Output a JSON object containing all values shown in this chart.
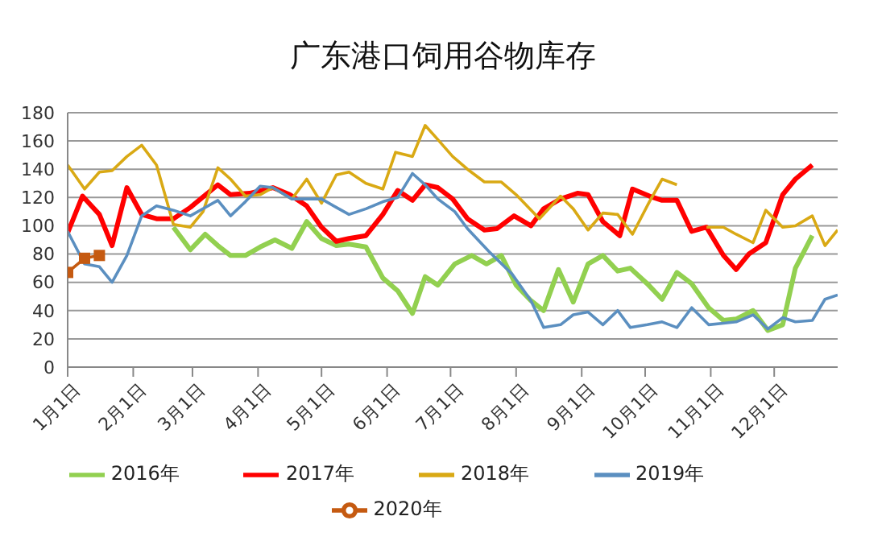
{
  "chart_data": {
    "type": "line",
    "title": "广东港口饲用谷物库存",
    "xlim": [
      "--01-01",
      "--12-31"
    ],
    "xticks": [
      {
        "value": "--01-01",
        "label": "1月1日"
      },
      {
        "value": "--02-01",
        "label": "2月1日"
      },
      {
        "value": "--03-01",
        "label": "3月1日"
      },
      {
        "value": "--04-01",
        "label": "4月1日"
      },
      {
        "value": "--05-01",
        "label": "5月1日"
      },
      {
        "value": "--06-01",
        "label": "6月1日"
      },
      {
        "value": "--07-01",
        "label": "7月1日"
      },
      {
        "value": "--08-01",
        "label": "8月1日"
      },
      {
        "value": "--09-01",
        "label": "9月1日"
      },
      {
        "value": "--10-01",
        "label": "10月1日"
      },
      {
        "value": "--11-01",
        "label": "11月1日"
      },
      {
        "value": "--12-01",
        "label": "12月1日"
      }
    ],
    "ylim": [
      0,
      180
    ],
    "yticks": [
      0,
      20,
      40,
      60,
      80,
      100,
      120,
      140,
      160,
      180
    ],
    "grid": "y",
    "legend": "bottom",
    "marker": "none",
    "line_style": "solid",
    "series": [
      {
        "name": "2016年",
        "color": "#92d050",
        "x": [
          "--02-20",
          "--02-28",
          "--03-07",
          "--03-13",
          "--03-19",
          "--03-26",
          "--04-02",
          "--04-09",
          "--04-17",
          "--04-24",
          "--05-01",
          "--05-08",
          "--05-14",
          "--05-22",
          "--05-30",
          "--06-06",
          "--06-13",
          "--06-19",
          "--06-25",
          "--07-03",
          "--07-11",
          "--07-18",
          "--07-25",
          "--08-01",
          "--08-08",
          "--08-14",
          "--08-21",
          "--08-28",
          "--09-04",
          "--09-11",
          "--09-18",
          "--09-24",
          "--10-02",
          "--10-09",
          "--10-16",
          "--10-23",
          "--10-31",
          "--11-07",
          "--11-13",
          "--11-21",
          "--11-28",
          "--12-05",
          "--12-11",
          "--12-19"
        ],
        "values": [
          99,
          83,
          94,
          86,
          79,
          79,
          85,
          90,
          84,
          103,
          91,
          86,
          87,
          85,
          63,
          54,
          38,
          64,
          58,
          73,
          79,
          73,
          79,
          58,
          47,
          40,
          69,
          46,
          73,
          79,
          68,
          70,
          59,
          48,
          67,
          59,
          42,
          33,
          34,
          40,
          26,
          30,
          70,
          93
        ]
      },
      {
        "name": "2017年",
        "color": "#ff0000",
        "x": [
          "--01-01",
          "--01-08",
          "--01-16",
          "--01-22",
          "--01-29",
          "--02-05",
          "--02-12",
          "--02-20",
          "--02-28",
          "--03-13",
          "--03-19",
          "--03-28",
          "--04-08",
          "--04-16",
          "--04-24",
          "--05-01",
          "--05-08",
          "--05-14",
          "--05-22",
          "--05-30",
          "--06-06",
          "--06-13",
          "--06-19",
          "--06-25",
          "--07-02",
          "--07-09",
          "--07-17",
          "--07-23",
          "--07-31",
          "--08-08",
          "--08-14",
          "--08-22",
          "--08-30",
          "--09-04",
          "--09-11",
          "--09-19",
          "--09-25",
          "--10-03",
          "--10-09",
          "--10-16",
          "--10-23",
          "--10-30",
          "--11-07",
          "--11-13",
          "--11-19",
          "--11-27",
          "--12-05",
          "--12-11",
          "--12-19"
        ],
        "values": [
          95,
          121,
          108,
          86,
          127,
          108,
          105,
          105,
          113,
          129,
          122,
          123,
          127,
          122,
          114,
          99,
          89,
          91,
          93,
          108,
          125,
          118,
          129,
          127,
          119,
          105,
          97,
          98,
          107,
          100,
          112,
          119,
          123,
          122,
          103,
          93,
          126,
          121,
          118,
          118,
          96,
          99,
          79,
          69,
          80,
          88,
          122,
          133,
          143
        ]
      },
      {
        "name": "2018年",
        "color": "#d9a914",
        "x": [
          "--01-01",
          "--01-09",
          "--01-16",
          "--01-22",
          "--01-29",
          "--02-05",
          "--02-12",
          "--02-20",
          "--02-28",
          "--03-06",
          "--03-13",
          "--03-19",
          "--03-26",
          "--04-02",
          "--04-08",
          "--04-17",
          "--04-24",
          "--05-01",
          "--05-08",
          "--05-14",
          "--05-22",
          "--05-30",
          "--06-05",
          "--06-13",
          "--06-19",
          "--06-25",
          "--07-02",
          "--07-09",
          "--07-17",
          "--07-25",
          "--08-01",
          "--08-12",
          "--08-22",
          "--08-28",
          "--09-04",
          "--09-11",
          "--09-18",
          "--09-25",
          "--10-03",
          "--10-09",
          "--10-16",
          "--10-23",
          "--10-30",
          "--11-07",
          "--11-13",
          "--11-21",
          "--11-27",
          "--12-05",
          "--12-11",
          "--12-19",
          "--12-25",
          "--12-31"
        ],
        "values": [
          143,
          126,
          138,
          139,
          149,
          157,
          143,
          101,
          99,
          110,
          141,
          133,
          121,
          122,
          127,
          119,
          133,
          116,
          136,
          138,
          130,
          126,
          152,
          149,
          171,
          161,
          149,
          140,
          131,
          131,
          122,
          105,
          121,
          112,
          97,
          109,
          108,
          94,
          117,
          133,
          129,
          null,
          99,
          99,
          94,
          88,
          111,
          99,
          100,
          107,
          86,
          97
        ]
      },
      {
        "name": "2019年",
        "color": "#5b8fc0",
        "x": [
          "--01-01",
          "--01-09",
          "--01-16",
          "--01-22",
          "--01-29",
          "--02-05",
          "--02-12",
          "--02-20",
          "--02-28",
          "--03-13",
          "--03-19",
          "--03-26",
          "--04-02",
          "--04-08",
          "--04-17",
          "--04-24",
          "--05-01",
          "--05-08",
          "--05-14",
          "--05-22",
          "--05-30",
          "--06-06",
          "--06-13",
          "--06-19",
          "--06-25",
          "--07-03",
          "--07-09",
          "--07-19",
          "--07-30",
          "--08-08",
          "--08-14",
          "--08-22",
          "--08-28",
          "--09-04",
          "--09-11",
          "--09-18",
          "--09-24",
          "--10-02",
          "--10-09",
          "--10-16",
          "--10-23",
          "--10-31",
          "--11-07",
          "--11-13",
          "--11-21",
          "--11-28",
          "--12-05",
          "--12-11",
          "--12-19",
          "--12-25",
          "--12-31"
        ],
        "values": [
          96,
          73,
          71,
          60,
          79,
          107,
          114,
          111,
          107,
          118,
          107,
          117,
          128,
          127,
          119,
          119,
          119,
          113,
          108,
          112,
          117,
          120,
          137,
          129,
          119,
          110,
          98,
          82,
          66,
          47,
          28,
          30,
          37,
          39,
          30,
          40,
          28,
          30,
          32,
          28,
          42,
          30,
          31,
          32,
          37,
          27,
          35,
          32,
          33,
          48,
          51
        ]
      },
      {
        "name": "2020年",
        "color": "#c55a11",
        "marker": "square",
        "x": [
          "--01-01",
          "--01-09",
          "--01-16"
        ],
        "values": [
          67,
          77,
          79
        ]
      }
    ]
  }
}
